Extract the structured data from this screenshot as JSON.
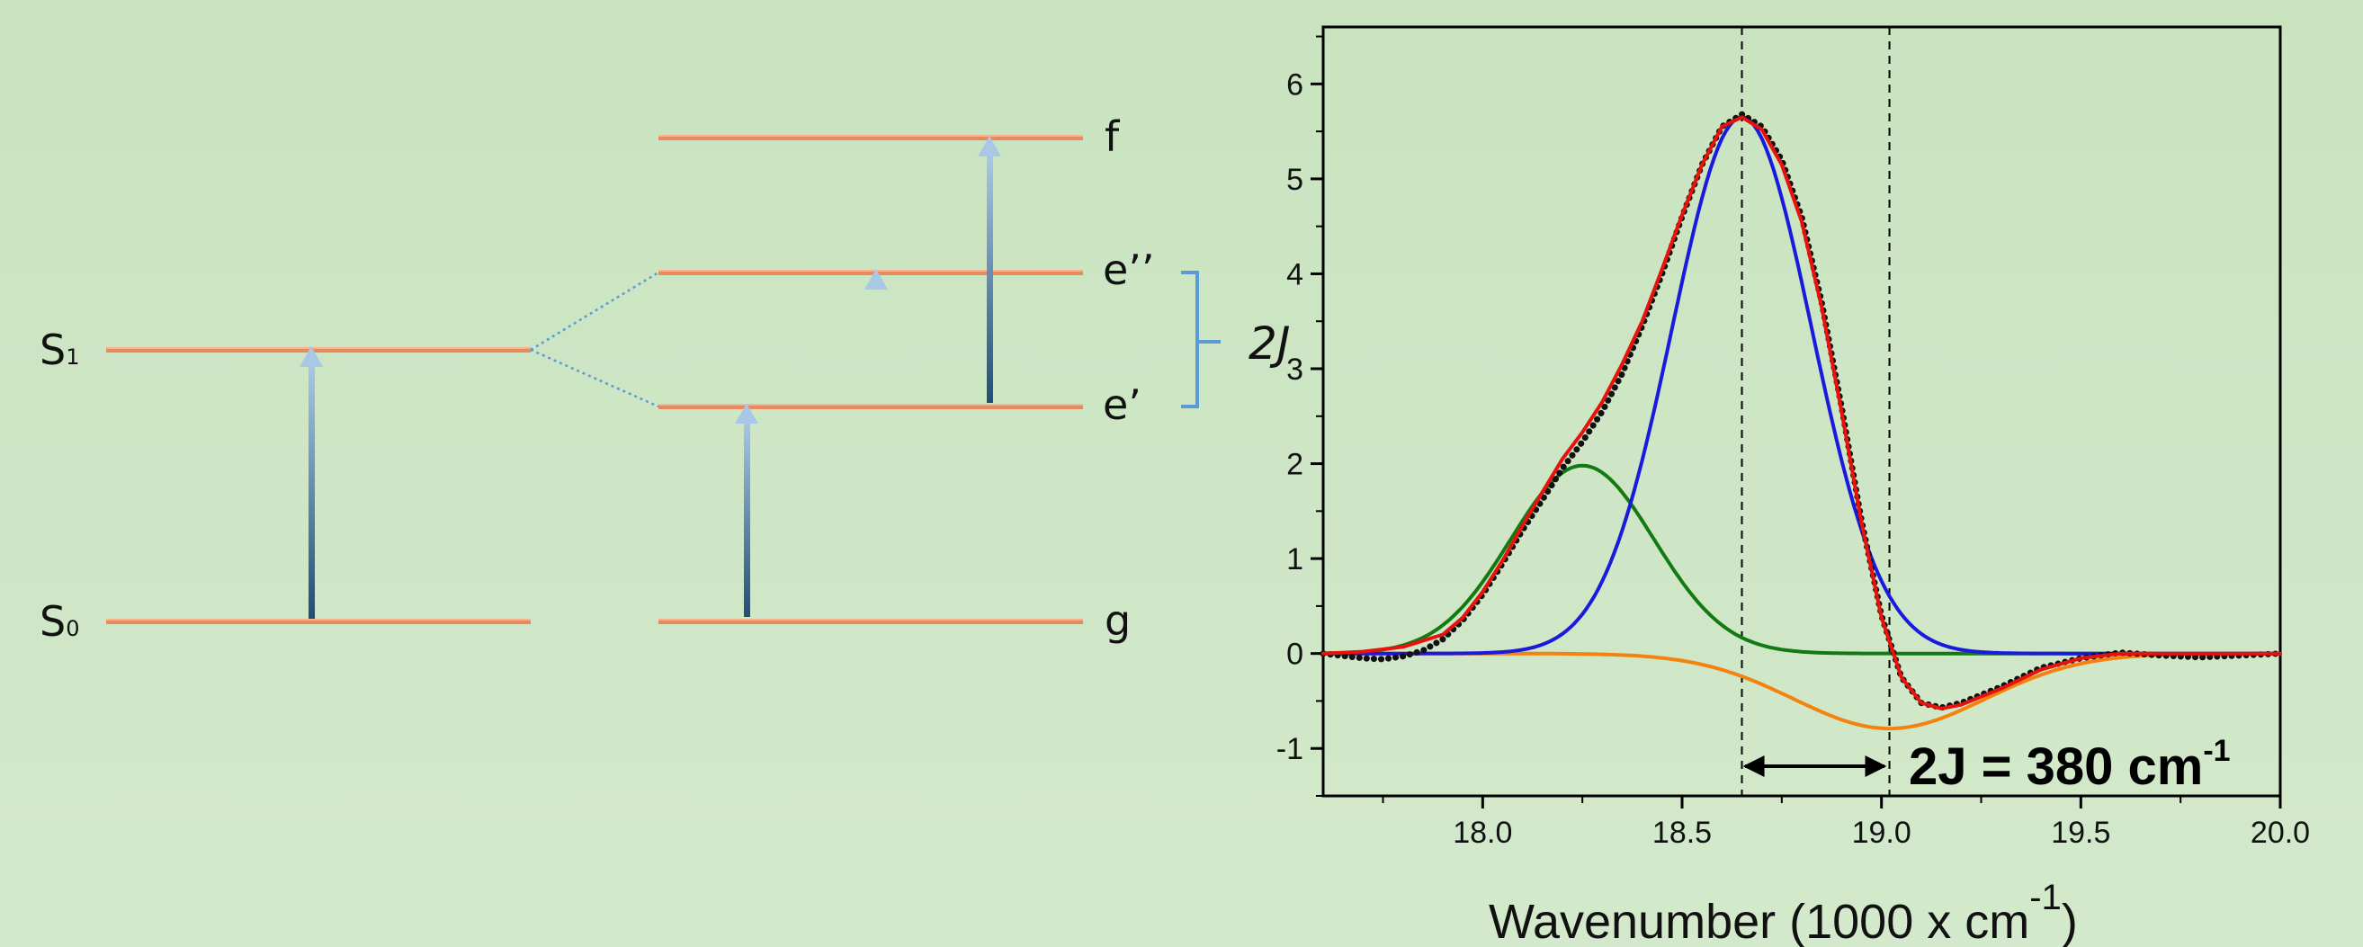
{
  "diagram": {
    "state_labels": {
      "S1": {
        "base": "S",
        "sub": "1"
      },
      "S0": {
        "base": "S",
        "sub": "0"
      },
      "f": "f",
      "e2": "e’’",
      "e1": "e’",
      "g": "g"
    },
    "splitting_label": "2J",
    "colors": {
      "level": "#e88a5c",
      "level_highlight": "#f6c2a4",
      "bracket": "#5b9bd5",
      "arrow_top": "#a9c8e8",
      "arrow_bottom": "#1f4e79",
      "dotted_link": "#5b9bd5"
    }
  },
  "chart_data": {
    "type": "line",
    "xlabel": "Wavenumber (1000 x cm",
    "xlabel_sup": "-1",
    "xlabel_close": ")",
    "ylabel": "",
    "xlim": [
      17.6,
      20.0
    ],
    "ylim": [
      -1.5,
      6.6
    ],
    "x_ticks": [
      "18.0",
      "18.5",
      "19.0",
      "19.5",
      "20.0"
    ],
    "y_ticks": [
      "-1",
      "0",
      "1",
      "2",
      "3",
      "4",
      "5",
      "6"
    ],
    "grid": false,
    "vlines": [
      18.65,
      19.02
    ],
    "annotation": {
      "text": "2J = 380 cm",
      "sup": "-1"
    },
    "colors": {
      "data": "#111111",
      "fit": "#e8120c",
      "blue": "#1a1adf",
      "green": "#137a13",
      "orange": "#f4820e"
    },
    "series": [
      {
        "id": "data",
        "style": "dotted",
        "x": [
          17.6,
          17.7,
          17.75,
          17.8,
          17.85,
          17.9,
          17.95,
          18.0,
          18.05,
          18.1,
          18.15,
          18.2,
          18.25,
          18.3,
          18.35,
          18.4,
          18.45,
          18.5,
          18.55,
          18.6,
          18.65,
          18.7,
          18.75,
          18.8,
          18.85,
          18.9,
          18.95,
          19.0,
          19.05,
          19.1,
          19.15,
          19.2,
          19.3,
          19.4,
          19.5,
          19.6,
          19.7,
          19.8,
          19.9,
          20.0
        ],
        "y": [
          0.0,
          -0.05,
          -0.06,
          -0.03,
          0.03,
          0.15,
          0.35,
          0.62,
          0.95,
          1.3,
          1.62,
          1.95,
          2.23,
          2.55,
          2.95,
          3.45,
          4.0,
          4.6,
          5.15,
          5.55,
          5.68,
          5.55,
          5.2,
          4.6,
          3.7,
          2.6,
          1.4,
          0.4,
          -0.25,
          -0.52,
          -0.57,
          -0.52,
          -0.35,
          -0.15,
          -0.05,
          0.01,
          -0.02,
          -0.04,
          -0.02,
          0.0
        ]
      },
      {
        "id": "fit",
        "style": "solid",
        "x": [
          17.6,
          17.7,
          17.8,
          17.9,
          17.95,
          18.0,
          18.05,
          18.1,
          18.15,
          18.2,
          18.25,
          18.3,
          18.35,
          18.4,
          18.45,
          18.5,
          18.55,
          18.6,
          18.65,
          18.7,
          18.75,
          18.8,
          18.85,
          18.9,
          18.95,
          19.0,
          19.05,
          19.1,
          19.15,
          19.2,
          19.3,
          19.4,
          19.5,
          19.6,
          19.7,
          19.8,
          20.0
        ],
        "y": [
          0.0,
          0.02,
          0.07,
          0.2,
          0.38,
          0.65,
          0.98,
          1.35,
          1.7,
          2.05,
          2.33,
          2.65,
          3.05,
          3.5,
          4.05,
          4.62,
          5.15,
          5.55,
          5.65,
          5.52,
          5.15,
          4.55,
          3.65,
          2.55,
          1.38,
          0.38,
          -0.25,
          -0.52,
          -0.58,
          -0.54,
          -0.37,
          -0.17,
          -0.05,
          0.0,
          0.0,
          0.0,
          0.0
        ]
      },
      {
        "id": "blue",
        "style": "solid",
        "peak": {
          "center": 18.65,
          "amp": 5.65,
          "sigma": 0.175
        }
      },
      {
        "id": "green",
        "style": "solid",
        "peak": {
          "center": 18.25,
          "amp": 1.98,
          "sigma": 0.18
        }
      },
      {
        "id": "orange",
        "style": "solid",
        "peak": {
          "center": 19.02,
          "amp": -0.79,
          "sigma": 0.24
        }
      }
    ]
  }
}
